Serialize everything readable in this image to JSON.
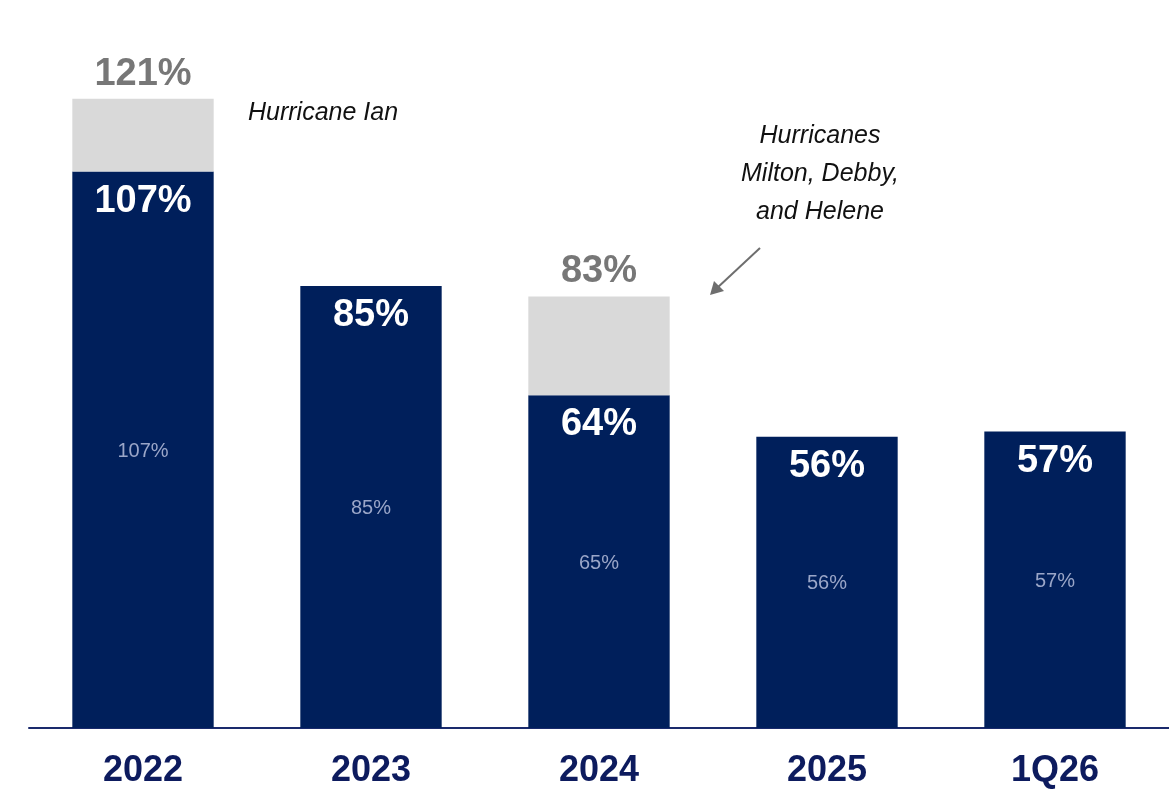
{
  "chart_data": {
    "type": "bar",
    "stacked": true,
    "categories": [
      "2022",
      "2023",
      "2024",
      "2025",
      "1Q26"
    ],
    "series": [
      {
        "color": "#001f5b",
        "values": [
          107,
          85,
          64,
          56,
          57
        ],
        "value_labels": [
          "107%",
          "85%",
          "64%",
          "56%",
          "57%"
        ]
      },
      {
        "color": "#d9d9d9",
        "values": [
          14,
          null,
          19,
          null,
          null
        ]
      }
    ],
    "totals": [
      "121%",
      null,
      "83%",
      null,
      null
    ],
    "tick_labels": "x",
    "annotations": [
      "Hurricane Ian",
      "Hurricanes\nMilton, Debby,\nand Helene",
      "107%",
      "85%",
      "65%",
      "56%",
      "57%"
    ]
  }
}
